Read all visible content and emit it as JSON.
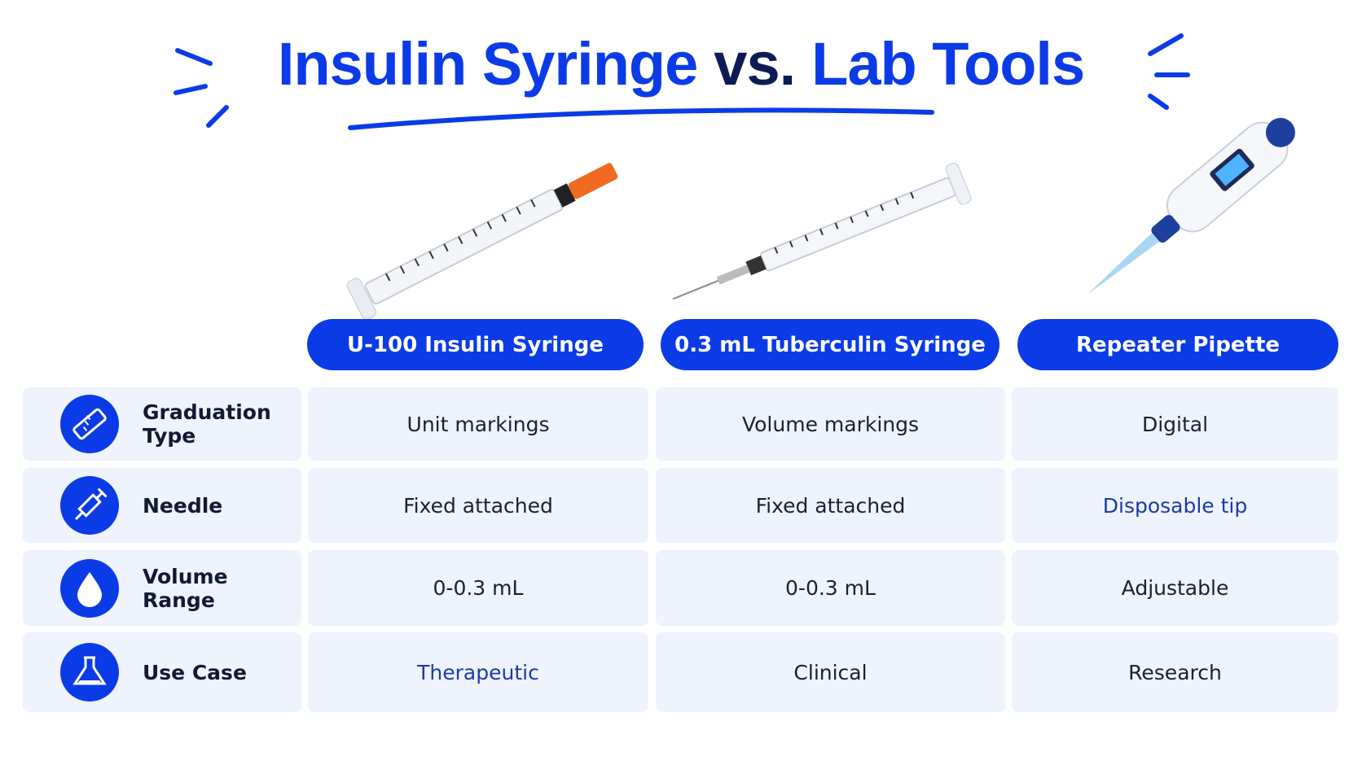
{
  "header": {
    "title": [
      "Insulin Syringe",
      "vs.",
      "Lab Tools"
    ]
  },
  "table": {
    "columns": [
      "U-100 Insulin Syringe",
      "0.3 mL Tuberculin Syringe",
      "Repeater Pipette"
    ],
    "rows": [
      {
        "label": "Graduation Type",
        "cells": [
          "Unit markings",
          "Volume markings",
          "Digital"
        ]
      },
      {
        "label": "Needle",
        "cells": [
          "Fixed attached",
          "Fixed attached",
          "Disposable tip"
        ]
      },
      {
        "label": "Volume Range",
        "cells": [
          "0-0.3 mL",
          "0-0.3 mL",
          "Adjustable"
        ]
      },
      {
        "label": "Use Case",
        "cells": [
          "Therapeutic",
          "Clinical",
          "Research"
        ]
      }
    ]
  }
}
